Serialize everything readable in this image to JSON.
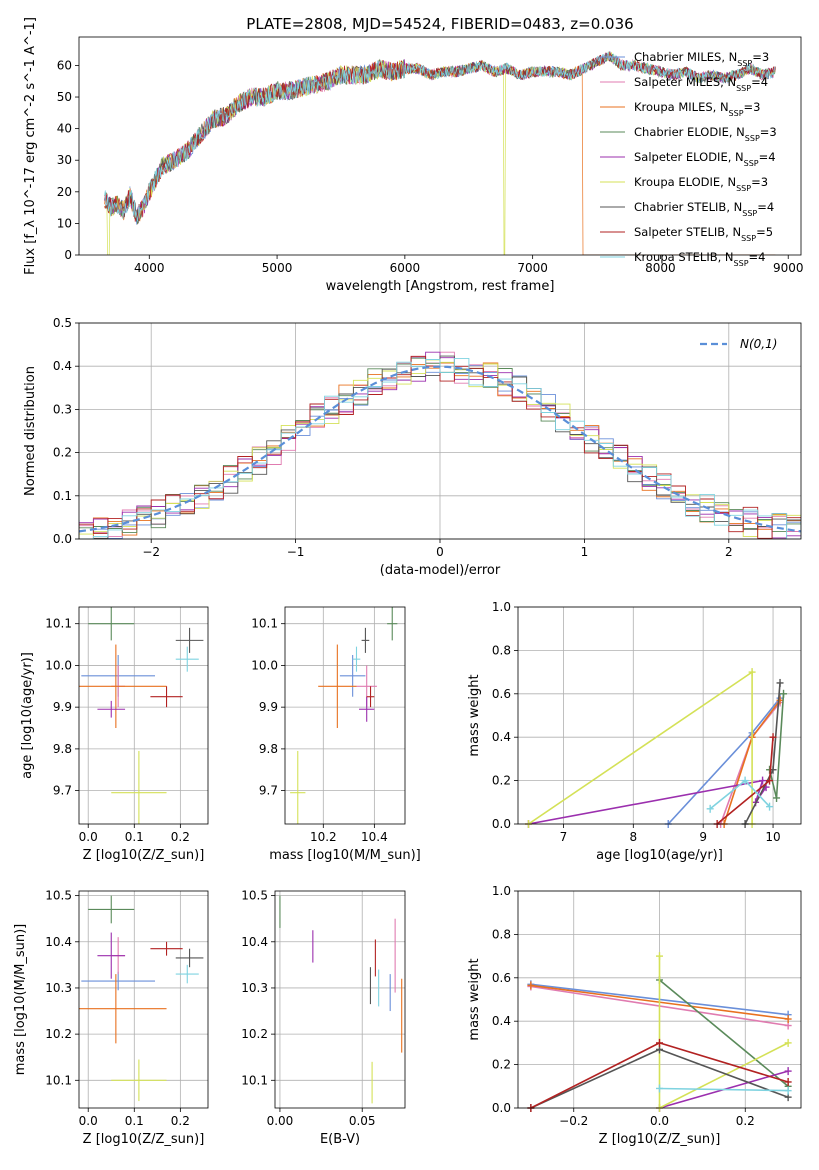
{
  "figure": {
    "title": "PLATE=2808, MJD=54524, FIBERID=0483, z=0.036"
  },
  "colors": {
    "Chabrier MILES": "#6a8fd9",
    "Salpeter MILES": "#e07bb0",
    "Kroupa MILES": "#e8711f",
    "Chabrier ELODIE": "#5a8a5a",
    "Salpeter ELODIE": "#9b2fae",
    "Kroupa ELODIE": "#d4e157",
    "Chabrier STELIB": "#555555",
    "Salpeter STELIB": "#b22222",
    "Kroupa STELIB": "#7fd3e0"
  },
  "chart_data": [
    {
      "id": "spectrum",
      "type": "line",
      "title": "PLATE=2808, MJD=54524, FIBERID=0483, z=0.036",
      "xlabel": "wavelength [Angstrom, rest frame]",
      "ylabel": "Flux [f_λ 10^-17 erg cm^-2 s^-1 A^-1]",
      "xlim": [
        3450,
        9100
      ],
      "ylim": [
        0,
        69
      ],
      "xticks": [
        4000,
        5000,
        6000,
        7000,
        8000,
        9000
      ],
      "yticks": [
        0,
        10,
        20,
        30,
        40,
        50,
        60
      ],
      "legend_position": "right",
      "legend": [
        {
          "model": "Chabrier MILES",
          "nssp": "3"
        },
        {
          "model": "Salpeter MILES",
          "nssp": "4"
        },
        {
          "model": "Kroupa MILES",
          "nssp": "3"
        },
        {
          "model": "Chabrier ELODIE",
          "nssp": "3"
        },
        {
          "model": "Salpeter ELODIE",
          "nssp": "4"
        },
        {
          "model": "Kroupa ELODIE",
          "nssp": "3"
        },
        {
          "model": "Chabrier STELIB",
          "nssp": "4"
        },
        {
          "model": "Salpeter STELIB",
          "nssp": "5"
        },
        {
          "model": "Kroupa STELIB",
          "nssp": "4"
        }
      ],
      "x": [
        3650,
        3700,
        3750,
        3800,
        3850,
        3900,
        3950,
        4000,
        4100,
        4200,
        4300,
        4400,
        4500,
        4600,
        4700,
        4800,
        4900,
        5000,
        5100,
        5200,
        5300,
        5400,
        5500,
        5600,
        5700,
        5800,
        5900,
        6000,
        6100,
        6200,
        6300,
        6400,
        6500,
        6600,
        6700,
        6800,
        6900,
        7000,
        7100,
        7200,
        7300,
        7400,
        7500,
        7600,
        7700,
        7800,
        7900,
        8000,
        8100,
        8200,
        8300,
        8400,
        8500,
        8600,
        8700,
        8800,
        8900
      ],
      "y": [
        18,
        15,
        16,
        14,
        19,
        12,
        15,
        20,
        28,
        30,
        33,
        38,
        43,
        44,
        48,
        50,
        50,
        52,
        52,
        53,
        54,
        55,
        57,
        57,
        57,
        59,
        58,
        59,
        59,
        57,
        58,
        58,
        59,
        60,
        58,
        59,
        57,
        58,
        58,
        58,
        57,
        59,
        61,
        63,
        60,
        60,
        59,
        58,
        57,
        58,
        56,
        57,
        56,
        57,
        59,
        57,
        58
      ],
      "annotations": [
        {
          "model": "Kroupa MILES",
          "drop_at": 7400
        },
        {
          "model": "Kroupa ELODIE",
          "drop_at": 6780
        },
        {
          "model": "Kroupa ELODIE",
          "drop_at": 3680
        }
      ]
    },
    {
      "id": "residuals",
      "type": "line",
      "xlabel": "(data-model)/error",
      "ylabel": "Normed distribution",
      "xlim": [
        -2.5,
        2.5
      ],
      "ylim": [
        0,
        0.5
      ],
      "xticks": [
        -2,
        -1,
        0,
        1,
        2
      ],
      "yticks": [
        0.0,
        0.1,
        0.2,
        0.3,
        0.4,
        0.5
      ],
      "legend_position": "top-right",
      "legend": [
        "N(0,1)"
      ],
      "grid": true,
      "hist_bin_width": 0.1,
      "gaussian": {
        "mu": 0,
        "sigma": 1
      }
    },
    {
      "id": "age-vs-Z",
      "type": "scatter",
      "xlabel": "Z [log10(Z/Z_sun)]",
      "ylabel": "age [log10(age/yr)]",
      "xlim": [
        -0.02,
        0.26
      ],
      "ylim": [
        9.62,
        10.14
      ],
      "xticks": [
        0.0,
        0.1,
        0.2
      ],
      "yticks": [
        9.7,
        9.8,
        9.9,
        10.0,
        10.1
      ],
      "grid": true,
      "points": [
        {
          "model": "Chabrier MILES",
          "x": 0.065,
          "y": 9.975,
          "xerr": 0.08,
          "yerr": 0.05
        },
        {
          "model": "Salpeter MILES",
          "x": 0.065,
          "y": 9.95,
          "xerr": 0.015,
          "yerr": 0.05
        },
        {
          "model": "Kroupa MILES",
          "x": 0.06,
          "y": 9.95,
          "xerr": 0.11,
          "yerr": 0.1
        },
        {
          "model": "Chabrier ELODIE",
          "x": 0.05,
          "y": 10.1,
          "xerr": 0.05,
          "yerr": 0.04
        },
        {
          "model": "Salpeter ELODIE",
          "x": 0.05,
          "y": 9.895,
          "xerr": 0.03,
          "yerr": 0.02
        },
        {
          "model": "Kroupa ELODIE",
          "x": 0.11,
          "y": 9.695,
          "xerr": 0.06,
          "yerr": 0.1
        },
        {
          "model": "Chabrier STELIB",
          "x": 0.22,
          "y": 10.06,
          "xerr": 0.03,
          "yerr": 0.03
        },
        {
          "model": "Salpeter STELIB",
          "x": 0.17,
          "y": 9.925,
          "xerr": 0.035,
          "yerr": 0.025
        },
        {
          "model": "Kroupa STELIB",
          "x": 0.215,
          "y": 10.015,
          "xerr": 0.025,
          "yerr": 0.03
        }
      ]
    },
    {
      "id": "age-vs-mass",
      "type": "scatter",
      "xlabel": "mass [log10(M/M_sun)]",
      "ylabel": "",
      "xlim": [
        10.05,
        10.52
      ],
      "ylim": [
        9.62,
        10.14
      ],
      "xticks": [
        10.2,
        10.4
      ],
      "yticks": [
        9.7,
        9.8,
        9.9,
        10.0,
        10.1
      ],
      "grid": true,
      "points": [
        {
          "model": "Chabrier MILES",
          "x": 10.315,
          "y": 9.975,
          "xerr": 0.05,
          "yerr": 0.05
        },
        {
          "model": "Salpeter MILES",
          "x": 10.37,
          "y": 9.95,
          "xerr": 0.04,
          "yerr": 0.05
        },
        {
          "model": "Kroupa MILES",
          "x": 10.255,
          "y": 9.95,
          "xerr": 0.075,
          "yerr": 0.1
        },
        {
          "model": "Chabrier ELODIE",
          "x": 10.47,
          "y": 10.1,
          "xerr": 0.02,
          "yerr": 0.04
        },
        {
          "model": "Salpeter ELODIE",
          "x": 10.37,
          "y": 9.895,
          "xerr": 0.03,
          "yerr": 0.03
        },
        {
          "model": "Kroupa ELODIE",
          "x": 10.1,
          "y": 9.695,
          "xerr": 0.03,
          "yerr": 0.1
        },
        {
          "model": "Chabrier STELIB",
          "x": 10.365,
          "y": 10.06,
          "xerr": 0.015,
          "yerr": 0.03
        },
        {
          "model": "Salpeter STELIB",
          "x": 10.385,
          "y": 9.925,
          "xerr": 0.015,
          "yerr": 0.025
        },
        {
          "model": "Kroupa STELIB",
          "x": 10.33,
          "y": 10.015,
          "xerr": 0.015,
          "yerr": 0.03
        }
      ]
    },
    {
      "id": "mass-weight-vs-age",
      "type": "line",
      "xlabel": "age [log10(age/yr)]",
      "ylabel": "mass weight",
      "xlim": [
        6.35,
        10.4
      ],
      "ylim": [
        0,
        1.0
      ],
      "xticks": [
        7,
        8,
        9,
        10
      ],
      "yticks": [
        0.0,
        0.2,
        0.4,
        0.6,
        0.8,
        1.0
      ],
      "grid": true,
      "series": [
        {
          "model": "Chabrier MILES",
          "x": [
            8.5,
            9.7,
            10.1
          ],
          "y": [
            0.0,
            0.42,
            0.58
          ]
        },
        {
          "model": "Salpeter MILES",
          "x": [
            9.25,
            9.7,
            10.1
          ],
          "y": [
            0.0,
            0.4,
            0.56
          ]
        },
        {
          "model": "Kroupa MILES",
          "x": [
            9.3,
            9.7,
            10.1
          ],
          "y": [
            0.0,
            0.4,
            0.57
          ]
        },
        {
          "model": "Chabrier ELODIE",
          "x": [
            9.95,
            10.05,
            10.15
          ],
          "y": [
            0.25,
            0.12,
            0.6
          ]
        },
        {
          "model": "Salpeter ELODIE",
          "x": [
            6.5,
            9.85,
            9.75,
            9.9
          ],
          "y": [
            0.0,
            0.2,
            0.1,
            0.17
          ]
        },
        {
          "model": "Kroupa ELODIE",
          "x": [
            6.5,
            9.7,
            9.7
          ],
          "y": [
            0.0,
            0.7,
            0.0
          ]
        },
        {
          "model": "Chabrier STELIB",
          "x": [
            9.6,
            10.0,
            10.1
          ],
          "y": [
            0.0,
            0.25,
            0.65
          ]
        },
        {
          "model": "Salpeter STELIB",
          "x": [
            9.2,
            9.95,
            10.0
          ],
          "y": [
            0.0,
            0.2,
            0.4
          ]
        },
        {
          "model": "Kroupa STELIB",
          "x": [
            9.1,
            9.6,
            9.95
          ],
          "y": [
            0.07,
            0.2,
            0.08
          ]
        }
      ]
    },
    {
      "id": "mass-vs-Z",
      "type": "scatter",
      "xlabel": "Z [log10(Z/Z_sun)]",
      "ylabel": "mass [log10(M/M_sun)]",
      "xlim": [
        -0.02,
        0.26
      ],
      "ylim": [
        10.04,
        10.51
      ],
      "xticks": [
        0.0,
        0.1,
        0.2
      ],
      "yticks": [
        10.1,
        10.2,
        10.3,
        10.4,
        10.5
      ],
      "grid": true,
      "points": [
        {
          "model": "Chabrier MILES",
          "x": 0.065,
          "y": 10.315,
          "xerr": 0.08,
          "yerr": 0.02
        },
        {
          "model": "Salpeter MILES",
          "x": 0.065,
          "y": 10.37,
          "xerr": 0.015,
          "yerr": 0.04
        },
        {
          "model": "Kroupa MILES",
          "x": 0.06,
          "y": 10.255,
          "xerr": 0.11,
          "yerr": 0.075
        },
        {
          "model": "Chabrier ELODIE",
          "x": 0.05,
          "y": 10.47,
          "xerr": 0.05,
          "yerr": 0.03
        },
        {
          "model": "Salpeter ELODIE",
          "x": 0.05,
          "y": 10.37,
          "xerr": 0.03,
          "yerr": 0.05
        },
        {
          "model": "Kroupa ELODIE",
          "x": 0.11,
          "y": 10.1,
          "xerr": 0.06,
          "yerr": 0.045
        },
        {
          "model": "Chabrier STELIB",
          "x": 0.22,
          "y": 10.365,
          "xerr": 0.03,
          "yerr": 0.02
        },
        {
          "model": "Salpeter STELIB",
          "x": 0.17,
          "y": 10.385,
          "xerr": 0.035,
          "yerr": 0.015
        },
        {
          "model": "Kroupa STELIB",
          "x": 0.215,
          "y": 10.33,
          "xerr": 0.025,
          "yerr": 0.02
        }
      ]
    },
    {
      "id": "mass-vs-ebv",
      "type": "scatter",
      "xlabel": "E(B-V)",
      "ylabel": "",
      "xlim": [
        -0.003,
        0.076
      ],
      "ylim": [
        10.04,
        10.51
      ],
      "xticks": [
        0.0,
        0.05
      ],
      "yticks": [
        10.1,
        10.2,
        10.3,
        10.4,
        10.5
      ],
      "grid": true,
      "points": [
        {
          "model": "Chabrier MILES",
          "x": 0.067,
          "y": 10.29,
          "xerr": 0,
          "yerr": 0.04
        },
        {
          "model": "Salpeter MILES",
          "x": 0.07,
          "y": 10.37,
          "xerr": 0,
          "yerr": 0.08
        },
        {
          "model": "Kroupa MILES",
          "x": 0.074,
          "y": 10.24,
          "xerr": 0,
          "yerr": 0.08
        },
        {
          "model": "Chabrier ELODIE",
          "x": 0.0,
          "y": 10.465,
          "xerr": 0,
          "yerr": 0.035
        },
        {
          "model": "Salpeter ELODIE",
          "x": 0.02,
          "y": 10.39,
          "xerr": 0,
          "yerr": 0.035
        },
        {
          "model": "Kroupa ELODIE",
          "x": 0.056,
          "y": 10.095,
          "xerr": 0,
          "yerr": 0.045
        },
        {
          "model": "Chabrier STELIB",
          "x": 0.055,
          "y": 10.305,
          "xerr": 0,
          "yerr": 0.04
        },
        {
          "model": "Salpeter STELIB",
          "x": 0.058,
          "y": 10.365,
          "xerr": 0,
          "yerr": 0.04
        },
        {
          "model": "Kroupa STELIB",
          "x": 0.06,
          "y": 10.3,
          "xerr": 0,
          "yerr": 0.04
        }
      ]
    },
    {
      "id": "mass-weight-vs-Z",
      "type": "line",
      "xlabel": "Z [log10(Z/Z_sun)]",
      "ylabel": "mass weight",
      "xlim": [
        -0.33,
        0.33
      ],
      "ylim": [
        0,
        1.0
      ],
      "xticks": [
        -0.2,
        0.0,
        0.2
      ],
      "yticks": [
        0.0,
        0.2,
        0.4,
        0.6,
        0.8,
        1.0
      ],
      "grid": true,
      "series": [
        {
          "model": "Chabrier MILES",
          "x": [
            -0.3,
            0.3
          ],
          "y": [
            0.57,
            0.43
          ]
        },
        {
          "model": "Salpeter MILES",
          "x": [
            -0.3,
            0.3
          ],
          "y": [
            0.56,
            0.38
          ]
        },
        {
          "model": "Kroupa MILES",
          "x": [
            -0.3,
            0.3
          ],
          "y": [
            0.565,
            0.41
          ]
        },
        {
          "model": "Chabrier ELODIE",
          "x": [
            0.0,
            0.3
          ],
          "y": [
            0.59,
            0.1
          ]
        },
        {
          "model": "Salpeter ELODIE",
          "x": [
            0.0,
            0.3
          ],
          "y": [
            0.0,
            0.17
          ]
        },
        {
          "model": "Kroupa ELODIE",
          "x": [
            0.0,
            0.0,
            0.3
          ],
          "y": [
            0.7,
            0.0,
            0.3
          ]
        },
        {
          "model": "Chabrier STELIB",
          "x": [
            -0.3,
            0.0,
            0.3
          ],
          "y": [
            0.0,
            0.27,
            0.05
          ]
        },
        {
          "model": "Salpeter STELIB",
          "x": [
            -0.3,
            0.0,
            0.3
          ],
          "y": [
            0.0,
            0.3,
            0.12
          ]
        },
        {
          "model": "Kroupa STELIB",
          "x": [
            0.0,
            0.3
          ],
          "y": [
            0.09,
            0.08
          ]
        }
      ]
    }
  ]
}
